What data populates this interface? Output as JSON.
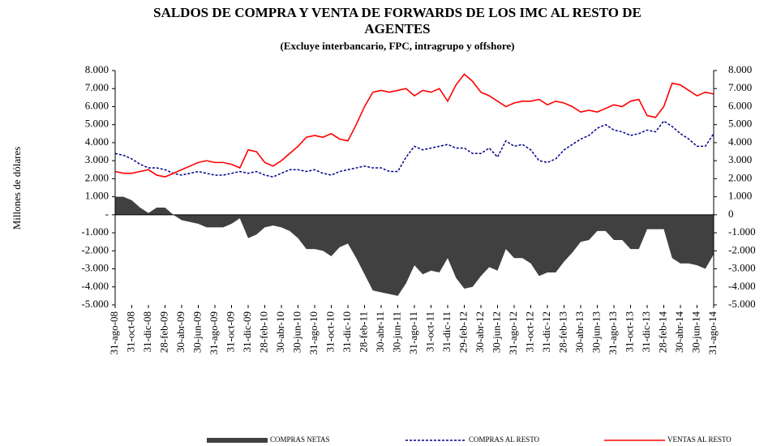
{
  "chart_data": {
    "type": "line",
    "title": [
      "SALDOS DE COMPRA Y VENTA DE FORWARDS DE LOS IMC AL RESTO DE",
      "AGENTES"
    ],
    "subtitle": "(Excluye interbancario, FPC, intragrupo y offshore)",
    "y_label": "Millones de dólares",
    "categories": [
      "31-ago-08",
      null,
      "31-oct-08",
      null,
      "31-dic-08",
      null,
      "28-feb-09",
      null,
      "30-abr-09",
      null,
      "30-jun-09",
      null,
      "31-ago-09",
      null,
      "31-oct-09",
      null,
      "31-dic-09",
      null,
      "28-feb-10",
      null,
      "30-abr-10",
      null,
      "30-jun-10",
      null,
      "31-ago-10",
      null,
      "31-oct-10",
      null,
      "31-dic-10",
      null,
      "28-feb-11",
      null,
      "30-abr-11",
      null,
      "30-jun-11",
      null,
      "31-ago-11",
      null,
      "31-oct-11",
      null,
      "31-dic-11",
      null,
      "29-feb-12",
      null,
      "30-abr-12",
      null,
      "30-jun-12",
      null,
      "31-ago-12",
      null,
      "31-oct-12",
      null,
      "31-dic-12",
      null,
      "28-feb-13",
      null,
      "30-abr-13",
      null,
      "30-jun-13",
      null,
      "31-ago-13",
      null,
      "31-oct-13",
      null,
      "31-dic-13",
      null,
      "28-feb-14",
      null,
      "30-abr-14",
      null,
      "30-jun-14",
      null,
      "31-ago-14"
    ],
    "series": [
      {
        "name": "COMPRAS NETAS",
        "color": "#404040",
        "style": "area",
        "values": [
          1000,
          1000,
          800,
          400,
          100,
          400,
          400,
          0,
          -300,
          -400,
          -500,
          -700,
          -700,
          -700,
          -500,
          -200,
          -1300,
          -1100,
          -700,
          -600,
          -700,
          -900,
          -1300,
          -1900,
          -1900,
          -2000,
          -2300,
          -1800,
          -1600,
          -2400,
          -3300,
          -4200,
          -4300,
          -4400,
          -4500,
          -3800,
          -2800,
          -3300,
          -3100,
          -3200,
          -2400,
          -3500,
          -4100,
          -4000,
          -3400,
          -2900,
          -3100,
          -1900,
          -2400,
          -2400,
          -2700,
          -3400,
          -3200,
          -3200,
          -2600,
          -2100,
          -1500,
          -1400,
          -900,
          -900,
          -1400,
          -1400,
          -1900,
          -1900,
          -800,
          -800,
          -800,
          -2400,
          -2700,
          -2700,
          -2800,
          -3000,
          -2200
        ]
      },
      {
        "name": "COMPRAS AL RESTO",
        "color": "#00008b",
        "style": "dashed",
        "values": [
          3400,
          3300,
          3100,
          2800,
          2600,
          2600,
          2500,
          2300,
          2200,
          2300,
          2400,
          2300,
          2200,
          2200,
          2300,
          2400,
          2300,
          2400,
          2200,
          2100,
          2300,
          2500,
          2500,
          2400,
          2500,
          2300,
          2200,
          2400,
          2500,
          2600,
          2700,
          2600,
          2600,
          2400,
          2400,
          3200,
          3800,
          3600,
          3700,
          3800,
          3900,
          3700,
          3700,
          3400,
          3400,
          3700,
          3200,
          4100,
          3800,
          3900,
          3600,
          3000,
          2900,
          3100,
          3600,
          3900,
          4200,
          4400,
          4800,
          5000,
          4700,
          4600,
          4400,
          4500,
          4700,
          4600,
          5200,
          4900,
          4500,
          4200,
          3800,
          3800,
          4500
        ]
      },
      {
        "name": "VENTAS AL RESTO",
        "color": "#ff0000",
        "style": "solid",
        "values": [
          2400,
          2300,
          2300,
          2400,
          2500,
          2200,
          2100,
          2300,
          2500,
          2700,
          2900,
          3000,
          2900,
          2900,
          2800,
          2600,
          3600,
          3500,
          2900,
          2700,
          3000,
          3400,
          3800,
          4300,
          4400,
          4300,
          4500,
          4200,
          4100,
          5000,
          6000,
          6800,
          6900,
          6800,
          6900,
          7000,
          6600,
          6900,
          6800,
          7000,
          6300,
          7200,
          7800,
          7400,
          6800,
          6600,
          6300,
          6000,
          6200,
          6300,
          6300,
          6400,
          6100,
          6300,
          6200,
          6000,
          5700,
          5800,
          5700,
          5900,
          6100,
          6000,
          6300,
          6400,
          5500,
          5400,
          6000,
          7300,
          7200,
          6900,
          6600,
          6800,
          6700
        ]
      }
    ],
    "ylim": [
      -5000,
      8000
    ],
    "yticks": [
      {
        "value": -5000,
        "label": "-5.000"
      },
      {
        "value": -4000,
        "label": "-4.000"
      },
      {
        "value": -3000,
        "label": "-3.000"
      },
      {
        "value": -2000,
        "label": "-2.000"
      },
      {
        "value": -1000,
        "label": "-1.000"
      },
      {
        "value": 0,
        "label": "-"
      },
      {
        "value": 1000,
        "label": "1.000"
      },
      {
        "value": 2000,
        "label": "2.000"
      },
      {
        "value": 3000,
        "label": "3.000"
      },
      {
        "value": 4000,
        "label": "4.000"
      },
      {
        "value": 5000,
        "label": "5.000"
      },
      {
        "value": 6000,
        "label": "6.000"
      },
      {
        "value": 7000,
        "label": "7.000"
      },
      {
        "value": 8000,
        "label": "8.000"
      }
    ],
    "y2lim": [
      -5000,
      8000
    ],
    "y2ticks": [
      {
        "value": -5000,
        "label": "-5.000"
      },
      {
        "value": -4000,
        "label": "-4.000"
      },
      {
        "value": -3000,
        "label": "-3.000"
      },
      {
        "value": -2000,
        "label": "-2.000"
      },
      {
        "value": -1000,
        "label": "-1.000"
      },
      0,
      {
        "value": 1000,
        "label": "1.000"
      },
      {
        "value": 2000,
        "label": "2.000"
      },
      {
        "value": 3000,
        "label": "3.000"
      },
      {
        "value": 4000,
        "label": "4.000"
      },
      {
        "value": 5000,
        "label": "5.000"
      },
      {
        "value": 6000,
        "label": "6.000"
      },
      {
        "value": 7000,
        "label": "7.000"
      },
      {
        "value": 8000,
        "label": "8.000"
      }
    ],
    "grid": false,
    "legend": "bottom"
  }
}
